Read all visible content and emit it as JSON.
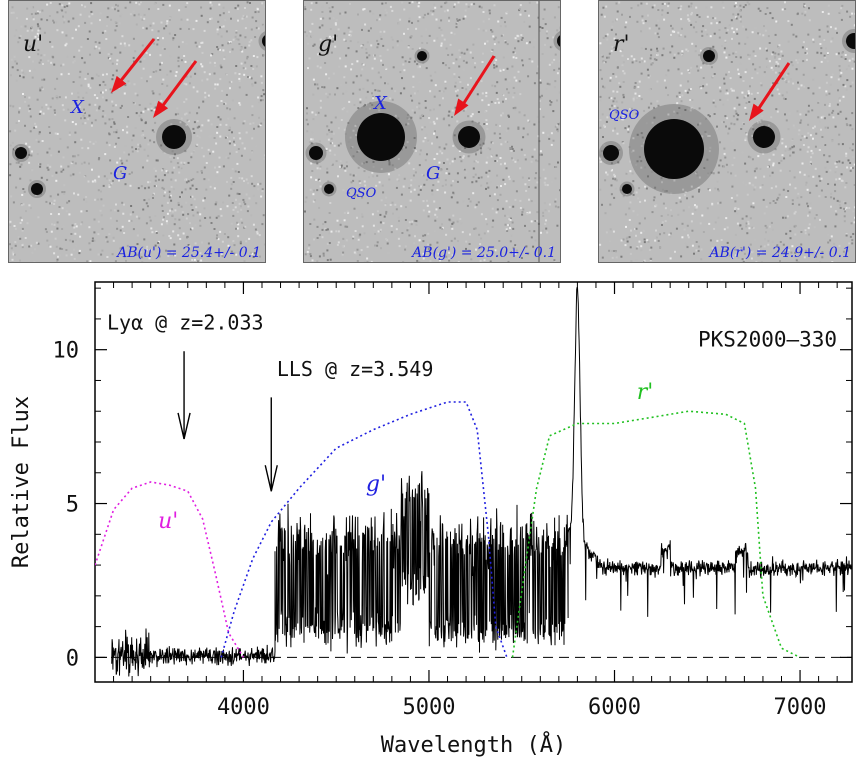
{
  "colors": {
    "panel_label": "#1a22e0",
    "arrow": "#e8141c",
    "u_filter": "#e01ee0",
    "g_filter": "#2020e0",
    "r_filter": "#20c020",
    "spectrum": "#000000"
  },
  "panels": [
    {
      "band": "u'",
      "labels": [
        "X",
        "G"
      ],
      "mag": "AB(u') = 25.4+/- 0.1"
    },
    {
      "band": "g'",
      "labels": [
        "X",
        "G",
        "QSO"
      ],
      "mag": "AB(g') = 25.0+/- 0.1"
    },
    {
      "band": "r'",
      "labels": [
        "QSO"
      ],
      "mag": "AB(r') = 24.9+/- 0.1"
    }
  ],
  "chart_data": {
    "type": "line",
    "title": "",
    "object": "PKS2000–330",
    "xlabel": "Wavelength (Å)",
    "ylabel": "Relative Flux",
    "xlim": [
      3200,
      7280
    ],
    "ylim": [
      -0.8,
      12.2
    ],
    "xticks": [
      4000,
      5000,
      6000,
      7000
    ],
    "yticks": [
      0,
      5,
      10
    ],
    "annotations": [
      {
        "text": "Lyα @ z=2.033",
        "x": 3680
      },
      {
        "text": "LLS @ z=3.549",
        "x": 4150
      }
    ],
    "filters": [
      {
        "name": "u'",
        "x": [
          3200,
          3300,
          3400,
          3500,
          3600,
          3700,
          3780,
          3850,
          3920,
          4000
        ],
        "y": [
          3.0,
          4.8,
          5.5,
          5.7,
          5.6,
          5.4,
          4.5,
          2.7,
          0.8,
          0.0
        ]
      },
      {
        "name": "g'",
        "x": [
          3880,
          3950,
          4050,
          4150,
          4300,
          4500,
          4700,
          4900,
          5100,
          5200,
          5260,
          5320,
          5360,
          5420
        ],
        "y": [
          0.0,
          1.5,
          3.2,
          4.4,
          5.5,
          6.8,
          7.4,
          7.9,
          8.3,
          8.3,
          7.4,
          4.0,
          1.0,
          0.0
        ]
      },
      {
        "name": "r'",
        "x": [
          5450,
          5520,
          5580,
          5650,
          5800,
          6000,
          6200,
          6400,
          6600,
          6700,
          6760,
          6800,
          6900,
          7000
        ],
        "y": [
          0.0,
          3.0,
          5.5,
          7.2,
          7.6,
          7.6,
          7.8,
          8.0,
          7.9,
          7.6,
          5.5,
          2.0,
          0.3,
          0.0
        ]
      }
    ],
    "spectrum": {
      "segments": [
        {
          "range": [
            3290,
            4170
          ],
          "level": 0.05,
          "noise": 0.45
        },
        {
          "range": [
            4170,
            5750
          ],
          "level": 2.2,
          "noise": 1.3
        },
        {
          "range": [
            5750,
            7280
          ],
          "level": 2.9,
          "noise": 0.25
        }
      ],
      "emission_line": {
        "x": 5800,
        "peak": 11.2
      }
    },
    "zero_line": true
  }
}
